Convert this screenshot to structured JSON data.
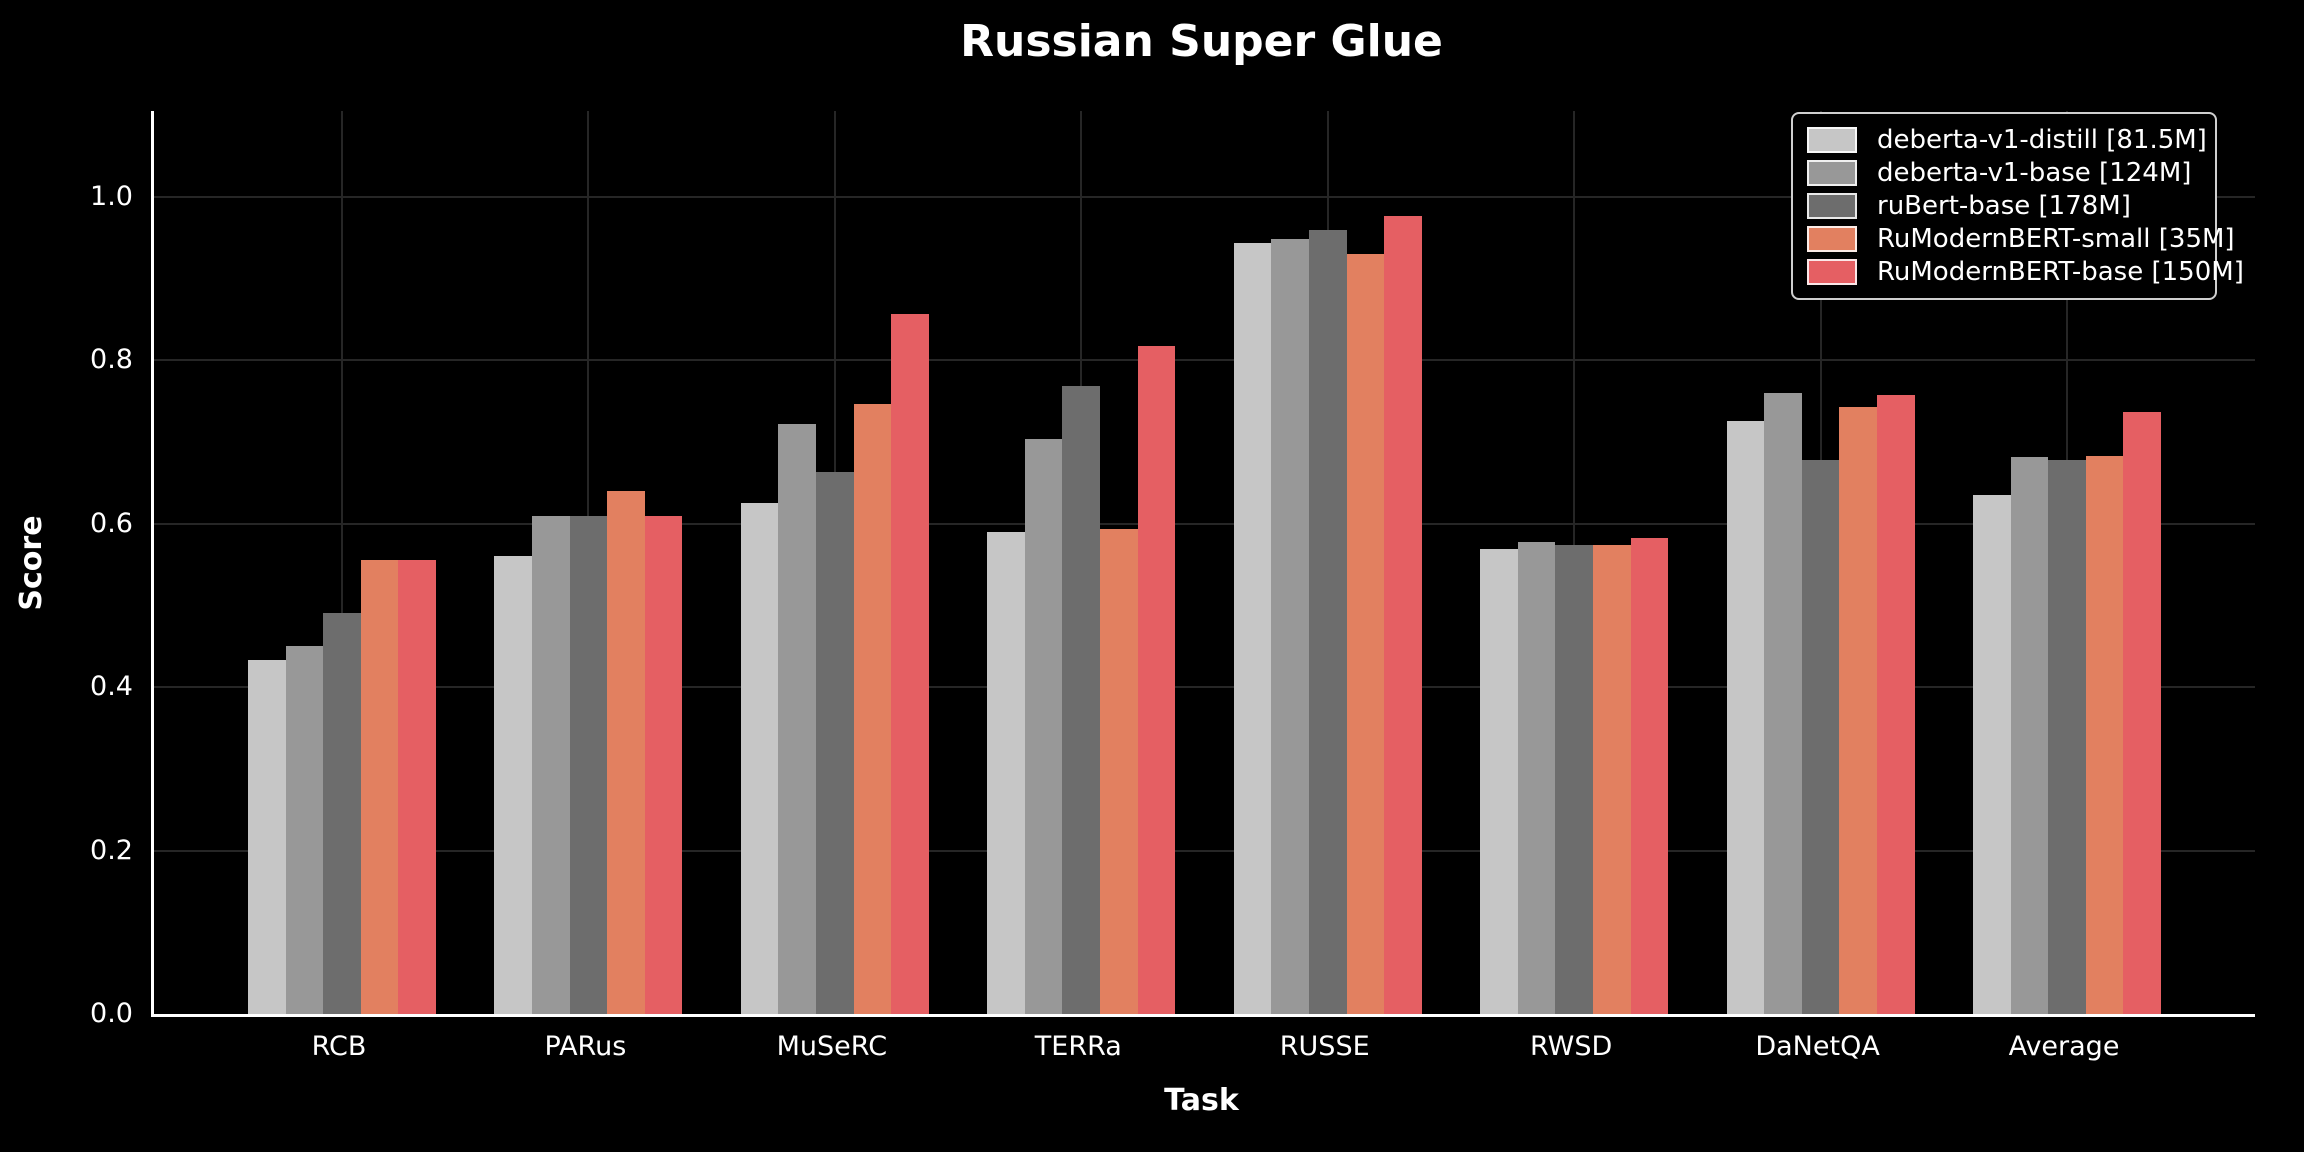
{
  "title": "Russian Super Glue",
  "colors": {
    "background": "#000000",
    "text": "#ffffff",
    "grid": "#262626",
    "spine": "#ffffff",
    "legend_border": "#cfcfcf"
  },
  "chart_data": {
    "type": "bar",
    "title": "Russian Super Glue",
    "xlabel": "Task",
    "ylabel": "Score",
    "ylim": [
      0,
      1.105
    ],
    "yticks": [
      0.0,
      0.2,
      0.4,
      0.6,
      0.8,
      1.0
    ],
    "grid": true,
    "legend_position": "upper right",
    "categories": [
      "RCB",
      "PARus",
      "MuSeRC",
      "TERRa",
      "RUSSE",
      "RWSD",
      "DaNetQA",
      "Average"
    ],
    "series": [
      {
        "name": "deberta-v1-distill [81.5M]",
        "color": "#c6c6c6",
        "values": [
          0.433,
          0.56,
          0.625,
          0.59,
          0.943,
          0.569,
          0.726,
          0.635
        ]
      },
      {
        "name": "deberta-v1-base [124M]",
        "color": "#989898",
        "values": [
          0.45,
          0.61,
          0.722,
          0.704,
          0.948,
          0.578,
          0.76,
          0.682
        ]
      },
      {
        "name": "ruBert-base [178M]",
        "color": "#6d6d6d",
        "values": [
          0.491,
          0.61,
          0.663,
          0.769,
          0.96,
          0.574,
          0.678,
          0.678
        ]
      },
      {
        "name": "RuModernBERT-small [35M]",
        "color": "#e28060",
        "values": [
          0.555,
          0.64,
          0.746,
          0.593,
          0.93,
          0.574,
          0.743,
          0.683
        ]
      },
      {
        "name": "RuModernBERT-base [150M]",
        "color": "#e55f63",
        "values": [
          0.556,
          0.61,
          0.857,
          0.818,
          0.977,
          0.583,
          0.758,
          0.737
        ]
      }
    ]
  }
}
